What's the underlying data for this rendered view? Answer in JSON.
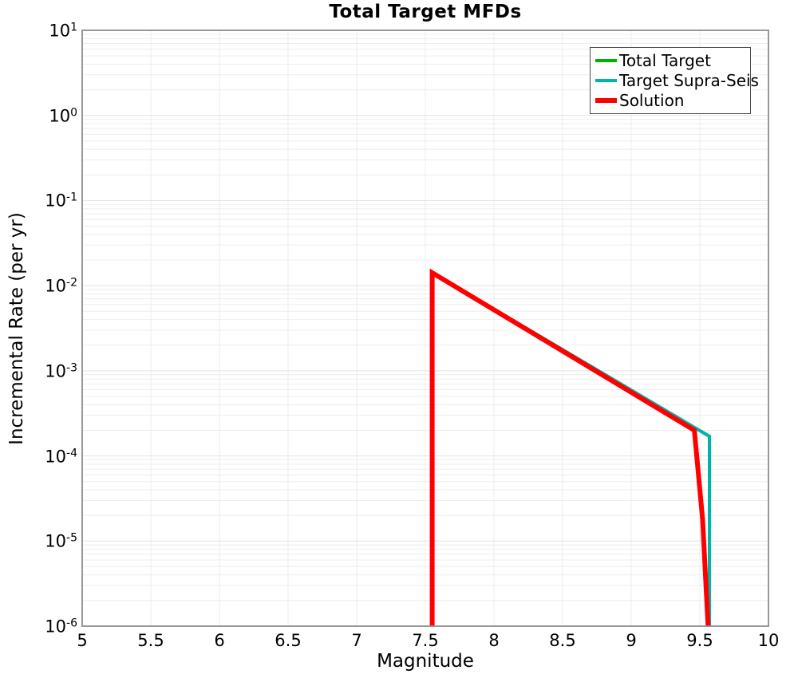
{
  "title": "Total Target MFDs",
  "colors": {
    "background": "#ffffff",
    "grid_minor": "#ededed",
    "grid_major": "#e2e2e2",
    "spine": "#8c8c8c",
    "legend_border": "#4a4a4a",
    "text": "#000000"
  },
  "chart_data": {
    "type": "line",
    "title": "Total Target MFDs",
    "xlabel": "Magnitude",
    "ylabel": "Incremental Rate (per yr)",
    "xlim": [
      5,
      10
    ],
    "yscale": "log",
    "ylim_log10": [
      -6,
      1
    ],
    "x_major_ticks": [
      5,
      5.5,
      6,
      6.5,
      7,
      7.5,
      8,
      8.5,
      9,
      9.5,
      10
    ],
    "x_tick_labels": [
      "5",
      "5.5",
      "6",
      "6.5",
      "7",
      "7.5",
      "8",
      "8.5",
      "9",
      "9.5",
      "10"
    ],
    "y_tick_exponents": [
      1,
      0,
      -1,
      -2,
      -3,
      -4,
      -5,
      -6
    ],
    "grid": true,
    "legend_position": "upper right",
    "series": [
      {
        "name": "Total Target",
        "color": "#00b200",
        "linewidth": 4,
        "x": [
          7.55,
          7.55,
          9.57,
          9.57
        ],
        "y": [
          1e-06,
          0.0142,
          0.00017,
          1e-06
        ]
      },
      {
        "name": "Target Supra-Seis",
        "color": "#00b3ab",
        "linewidth": 4,
        "x": [
          7.55,
          7.55,
          9.57,
          9.57
        ],
        "y": [
          1e-06,
          0.0142,
          0.00017,
          1e-06
        ]
      },
      {
        "name": "Solution",
        "color": "#ff0000",
        "linewidth": 6,
        "x": [
          7.55,
          7.55,
          9.46,
          9.52,
          9.56
        ],
        "y": [
          1e-06,
          0.0142,
          0.0002,
          1.8e-05,
          1e-06
        ]
      }
    ]
  }
}
